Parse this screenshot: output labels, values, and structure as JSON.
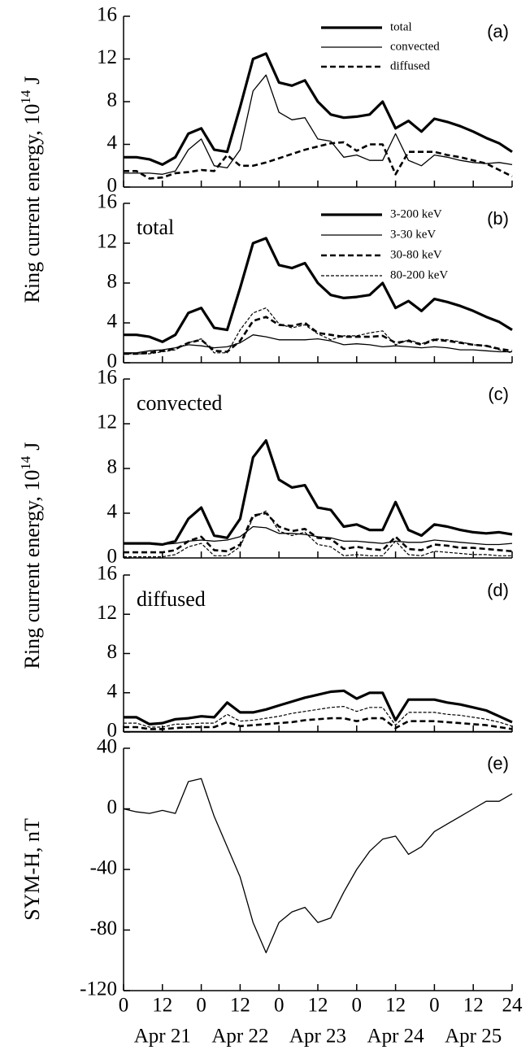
{
  "chart_data": [
    {
      "type": "line",
      "panel_label": "(a)",
      "legend": "upper right",
      "y_label": {
        "main": "Ring current energy, 10",
        "superscript": "14",
        "unit": "J"
      },
      "xlim": [
        0,
        120
      ],
      "ylim": [
        0,
        16
      ],
      "yticks": [
        0,
        4,
        8,
        12,
        16
      ],
      "x": [
        0,
        4,
        8,
        12,
        16,
        20,
        24,
        28,
        32,
        36,
        40,
        44,
        48,
        52,
        56,
        60,
        64,
        68,
        72,
        76,
        80,
        84,
        88,
        92,
        96,
        100,
        104,
        108,
        112,
        116,
        120
      ],
      "series": [
        {
          "name": "total",
          "color": "#000000",
          "style": "thick",
          "values": [
            2.8,
            2.8,
            2.6,
            2.1,
            2.8,
            5.0,
            5.5,
            3.5,
            3.3,
            7.5,
            12.0,
            12.5,
            9.8,
            9.5,
            10.0,
            8.0,
            6.8,
            6.5,
            6.6,
            6.8,
            8.0,
            5.5,
            6.2,
            5.2,
            6.4,
            6.1,
            5.7,
            5.2,
            4.6,
            4.1,
            3.3
          ]
        },
        {
          "name": "convected",
          "color": "#000000",
          "style": "thin",
          "values": [
            1.3,
            1.3,
            1.3,
            1.2,
            1.5,
            3.5,
            4.5,
            2.0,
            1.8,
            3.5,
            9.0,
            10.5,
            7.0,
            6.3,
            6.5,
            4.5,
            4.3,
            2.8,
            3.0,
            2.5,
            2.5,
            5.0,
            2.5,
            2.0,
            3.0,
            2.8,
            2.5,
            2.3,
            2.2,
            2.3,
            2.1
          ]
        },
        {
          "name": "diffused",
          "color": "#000000",
          "style": "dashed",
          "values": [
            1.5,
            1.5,
            0.8,
            0.9,
            1.3,
            1.4,
            1.6,
            1.5,
            3.0,
            2.0,
            2.0,
            2.3,
            2.7,
            3.1,
            3.5,
            3.8,
            4.1,
            4.2,
            3.4,
            4.0,
            4.0,
            1.2,
            3.3,
            3.3,
            3.3,
            3.0,
            2.8,
            2.5,
            2.2,
            1.6,
            1.0
          ]
        }
      ]
    },
    {
      "type": "line",
      "panel_label": "(b)",
      "label": "total",
      "legend": "upper right",
      "xlim": [
        0,
        120
      ],
      "ylim": [
        0,
        16
      ],
      "yticks": [
        0,
        4,
        8,
        12,
        16
      ],
      "x": [
        0,
        4,
        8,
        12,
        16,
        20,
        24,
        28,
        32,
        36,
        40,
        44,
        48,
        52,
        56,
        60,
        64,
        68,
        72,
        76,
        80,
        84,
        88,
        92,
        96,
        100,
        104,
        108,
        112,
        116,
        120
      ],
      "series": [
        {
          "name": "3-200 keV",
          "color": "#000000",
          "style": "thick",
          "values": [
            2.8,
            2.8,
            2.6,
            2.1,
            2.8,
            5.0,
            5.5,
            3.5,
            3.3,
            7.5,
            12.0,
            12.5,
            9.8,
            9.5,
            10.0,
            8.0,
            6.8,
            6.5,
            6.6,
            6.8,
            8.0,
            5.5,
            6.2,
            5.2,
            6.4,
            6.1,
            5.7,
            5.2,
            4.6,
            4.1,
            3.3
          ]
        },
        {
          "name": "3-30 keV",
          "color": "#000000",
          "style": "thin",
          "values": [
            1.0,
            1.0,
            1.2,
            1.3,
            1.5,
            1.8,
            1.7,
            1.5,
            1.6,
            2.0,
            2.8,
            2.6,
            2.3,
            2.3,
            2.3,
            2.4,
            2.2,
            1.8,
            1.9,
            1.8,
            1.6,
            1.7,
            1.6,
            1.5,
            1.6,
            1.5,
            1.3,
            1.3,
            1.2,
            1.1,
            1.1
          ]
        },
        {
          "name": "30-80 keV",
          "color": "#000000",
          "style": "dashed",
          "values": [
            0.9,
            0.9,
            1.0,
            1.2,
            1.4,
            2.0,
            2.3,
            1.2,
            1.1,
            2.2,
            4.2,
            4.6,
            3.8,
            3.7,
            4.0,
            3.0,
            2.8,
            2.6,
            2.6,
            2.6,
            2.7,
            2.0,
            2.2,
            1.8,
            2.3,
            2.2,
            2.0,
            1.8,
            1.7,
            1.4,
            1.2
          ]
        },
        {
          "name": "80-200 keV",
          "color": "#000000",
          "style": "dotted",
          "values": [
            0.9,
            0.9,
            0.9,
            1.1,
            1.3,
            2.0,
            2.4,
            1.0,
            1.0,
            3.3,
            5.0,
            5.5,
            3.9,
            3.5,
            3.8,
            2.9,
            2.3,
            2.7,
            2.7,
            3.0,
            3.2,
            1.8,
            2.3,
            1.9,
            2.4,
            2.3,
            2.1,
            1.8,
            1.7,
            1.3,
            1.0
          ]
        }
      ]
    },
    {
      "type": "line",
      "panel_label": "(c)",
      "label": "convected",
      "y_label": {
        "main": "Ring current energy, 10",
        "superscript": "14",
        "unit": "J"
      },
      "xlim": [
        0,
        120
      ],
      "ylim": [
        0,
        16
      ],
      "yticks": [
        0,
        4,
        8,
        12,
        16
      ],
      "x": [
        0,
        4,
        8,
        12,
        16,
        20,
        24,
        28,
        32,
        36,
        40,
        44,
        48,
        52,
        56,
        60,
        64,
        68,
        72,
        76,
        80,
        84,
        88,
        92,
        96,
        100,
        104,
        108,
        112,
        116,
        120
      ],
      "series": [
        {
          "color": "#000000",
          "style": "thick",
          "values": [
            1.3,
            1.3,
            1.3,
            1.2,
            1.5,
            3.5,
            4.5,
            2.0,
            1.8,
            3.5,
            9.0,
            10.5,
            7.0,
            6.3,
            6.5,
            4.5,
            4.3,
            2.8,
            3.0,
            2.5,
            2.5,
            5.0,
            2.5,
            2.0,
            3.0,
            2.8,
            2.5,
            2.3,
            2.2,
            2.3,
            2.1
          ]
        },
        {
          "color": "#000000",
          "style": "thin",
          "values": [
            1.3,
            1.3,
            1.3,
            1.2,
            1.3,
            1.5,
            1.6,
            1.5,
            1.6,
            1.9,
            2.8,
            2.7,
            2.2,
            2.2,
            2.1,
            1.9,
            1.8,
            1.5,
            1.5,
            1.4,
            1.3,
            1.5,
            1.4,
            1.4,
            1.6,
            1.5,
            1.4,
            1.3,
            1.2,
            1.2,
            1.3
          ]
        },
        {
          "color": "#000000",
          "style": "dashed",
          "values": [
            0.5,
            0.5,
            0.5,
            0.5,
            0.7,
            1.5,
            1.9,
            0.7,
            0.6,
            1.2,
            3.8,
            4.0,
            2.8,
            2.4,
            2.6,
            1.8,
            1.7,
            0.8,
            1.0,
            0.8,
            0.7,
            1.9,
            0.8,
            0.7,
            1.2,
            1.1,
            0.9,
            0.9,
            0.8,
            0.7,
            0.6
          ]
        },
        {
          "color": "#000000",
          "style": "dotted",
          "values": [
            0.1,
            0.1,
            0.1,
            0.1,
            0.3,
            1.0,
            1.3,
            0.2,
            0.2,
            1.0,
            3.6,
            4.2,
            2.4,
            2.0,
            2.3,
            1.2,
            1.0,
            0.2,
            0.3,
            0.2,
            0.2,
            1.5,
            0.3,
            0.2,
            0.6,
            0.5,
            0.4,
            0.3,
            0.3,
            0.2,
            0.2
          ]
        }
      ]
    },
    {
      "type": "line",
      "panel_label": "(d)",
      "label": "diffused",
      "xlim": [
        0,
        120
      ],
      "ylim": [
        0,
        16
      ],
      "yticks": [
        0,
        4,
        8,
        12,
        16
      ],
      "x": [
        0,
        4,
        8,
        12,
        16,
        20,
        24,
        28,
        32,
        36,
        40,
        44,
        48,
        52,
        56,
        60,
        64,
        68,
        72,
        76,
        80,
        84,
        88,
        92,
        96,
        100,
        104,
        108,
        112,
        116,
        120
      ],
      "series": [
        {
          "color": "#000000",
          "style": "thick",
          "values": [
            1.5,
            1.5,
            0.8,
            0.9,
            1.3,
            1.4,
            1.6,
            1.5,
            3.0,
            2.0,
            2.0,
            2.3,
            2.7,
            3.1,
            3.5,
            3.8,
            4.1,
            4.2,
            3.4,
            4.0,
            4.0,
            1.2,
            3.3,
            3.3,
            3.3,
            3.0,
            2.8,
            2.5,
            2.2,
            1.6,
            1.0
          ]
        },
        {
          "color": "#000000",
          "style": "thin",
          "values": [
            0.05,
            0.05,
            0.05,
            0.05,
            0.05,
            0.05,
            0.05,
            0.05,
            0.05,
            0.05,
            0.05,
            0.05,
            0.05,
            0.05,
            0.05,
            0.05,
            0.05,
            0.05,
            0.05,
            0.05,
            0.05,
            0.05,
            0.05,
            0.05,
            0.05,
            0.05,
            0.05,
            0.05,
            0.05,
            0.05,
            0.05
          ]
        },
        {
          "color": "#000000",
          "style": "dashed",
          "values": [
            0.5,
            0.5,
            0.3,
            0.3,
            0.4,
            0.5,
            0.5,
            0.5,
            1.0,
            0.6,
            0.7,
            0.8,
            0.9,
            1.0,
            1.2,
            1.3,
            1.4,
            1.4,
            1.1,
            1.4,
            1.4,
            0.4,
            1.1,
            1.1,
            1.1,
            1.0,
            0.9,
            0.8,
            0.7,
            0.5,
            0.3
          ]
        },
        {
          "color": "#000000",
          "style": "dotted",
          "values": [
            0.9,
            0.9,
            0.5,
            0.5,
            0.8,
            0.8,
            0.9,
            0.9,
            1.8,
            1.1,
            1.2,
            1.4,
            1.6,
            1.9,
            2.1,
            2.3,
            2.5,
            2.6,
            2.1,
            2.5,
            2.5,
            0.7,
            2.0,
            2.0,
            2.0,
            1.8,
            1.7,
            1.5,
            1.3,
            1.0,
            0.6
          ]
        }
      ]
    },
    {
      "type": "line",
      "panel_label": "(e)",
      "ylabel": "SYM-H, nT",
      "xlim": [
        0,
        120
      ],
      "ylim": [
        -120,
        40
      ],
      "yticks": [
        -120,
        -80,
        -40,
        0,
        40
      ],
      "xticks": [
        0,
        12,
        {
          "value": 24,
          "label": "0"
        },
        {
          "value": 36,
          "label": "12"
        },
        {
          "value": 48,
          "label": "0"
        },
        {
          "value": 60,
          "label": "12"
        },
        {
          "value": 72,
          "label": "0"
        },
        {
          "value": 84,
          "label": "12"
        },
        {
          "value": 96,
          "label": "0"
        },
        {
          "value": 108,
          "label": "12"
        },
        {
          "value": 120,
          "label": "24"
        }
      ],
      "date_labels": [
        "Apr 21",
        "Apr 22",
        "Apr 23",
        "Apr 24",
        "Apr 25"
      ],
      "x": [
        0,
        4,
        8,
        12,
        16,
        20,
        24,
        28,
        32,
        36,
        40,
        44,
        48,
        52,
        56,
        60,
        64,
        68,
        72,
        76,
        80,
        84,
        88,
        92,
        96,
        100,
        104,
        108,
        112,
        116,
        120
      ],
      "series": [
        {
          "color": "#000000",
          "style": "thin",
          "values": [
            0,
            -2,
            -3,
            -1,
            -3,
            18,
            20,
            -5,
            -25,
            -45,
            -75,
            -95,
            -75,
            -68,
            -65,
            -75,
            -72,
            -55,
            -40,
            -28,
            -20,
            -18,
            -30,
            -25,
            -15,
            -10,
            -5,
            0,
            5,
            5,
            10
          ]
        }
      ]
    }
  ]
}
